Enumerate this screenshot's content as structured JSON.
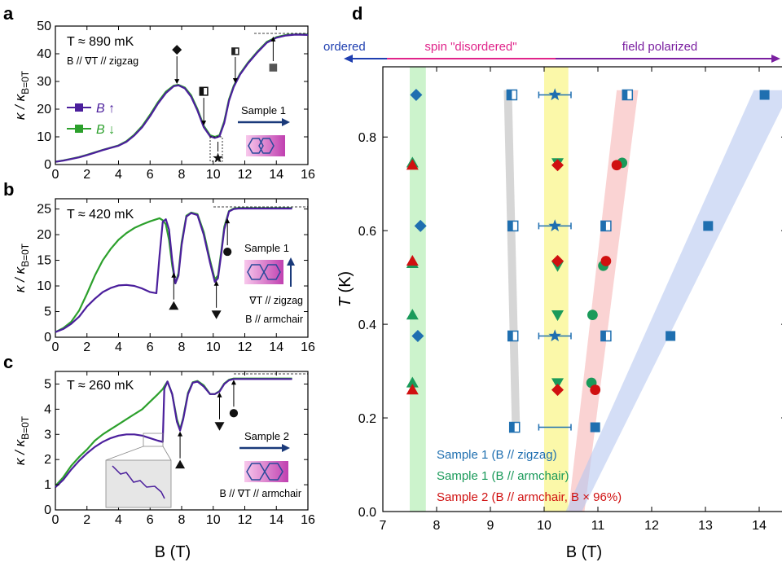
{
  "colors": {
    "purple": "#4b1f9c",
    "green": "#2ca02c",
    "blue": "#1f6fb0",
    "dkgreen": "#1a9a5a",
    "red": "#d01010",
    "navy": "#1a3a7a",
    "ordered": "#1f3fb0",
    "pink": "#e0248a",
    "violet": "#7a1fa0",
    "gray": "#555555"
  },
  "chart_data": [
    {
      "panel": "a",
      "type": "line",
      "ylabel_main": "κ / κ",
      "ylabel_sub": "B=0T",
      "xlim": [
        0,
        16
      ],
      "ylim": [
        0,
        50
      ],
      "xticks": [
        "0",
        "2",
        "4",
        "6",
        "8",
        "10",
        "12",
        "14",
        "16"
      ],
      "yticks": [
        "0",
        "10",
        "20",
        "30",
        "40",
        "50"
      ],
      "temp_label": "T ≈ 890 mK",
      "config_label": "B // ∇T // zigzag",
      "legend": [
        "B ↑",
        "B ↓"
      ],
      "sample_label": "Sample 1",
      "series": [
        {
          "name": "B ↑",
          "color_key": "purple",
          "x": [
            0,
            0.5,
            1,
            1.5,
            2,
            2.5,
            3,
            3.5,
            4,
            4.5,
            5,
            5.5,
            6,
            6.5,
            7,
            7.5,
            7.8,
            8.2,
            8.6,
            9,
            9.4,
            9.8,
            10.1,
            10.4,
            10.7,
            11,
            11.3,
            11.7,
            12.2,
            12.8,
            13.4,
            14,
            14.6,
            15.2,
            16
          ],
          "y": [
            1,
            1.4,
            2,
            2.6,
            3.4,
            4.3,
            5.2,
            6,
            6.8,
            8.2,
            10.5,
            13.5,
            17.5,
            22,
            25.8,
            28.3,
            28.6,
            27.5,
            24.5,
            19.5,
            13.5,
            10.2,
            9.6,
            10.2,
            15,
            23,
            28,
            32.5,
            36.5,
            40.5,
            44,
            45.8,
            46.6,
            46.9,
            46.8
          ]
        },
        {
          "name": "B ↓",
          "color_key": "green",
          "x": [
            0,
            0.5,
            1,
            1.5,
            2,
            2.5,
            3,
            3.5,
            4,
            4.5,
            5,
            5.5,
            6,
            6.5,
            7,
            7.5,
            7.8,
            8.2,
            8.6,
            9,
            9.4,
            9.8,
            10.1,
            10.4,
            10.7,
            11,
            11.3,
            11.7,
            12.2,
            12.8,
            13.4,
            14,
            14.6,
            15.2,
            16
          ],
          "y": [
            1,
            1.5,
            2.1,
            2.7,
            3.5,
            4.4,
            5.3,
            6.1,
            6.9,
            8.4,
            10.8,
            13.9,
            18,
            22.5,
            26.3,
            28.5,
            28.8,
            27.8,
            25,
            20,
            14,
            10.6,
            10,
            10.6,
            15.6,
            23.5,
            28.4,
            32.8,
            36.8,
            40.8,
            44.3,
            46,
            46.8,
            47,
            47
          ]
        }
      ],
      "annotations": [
        {
          "symbol": "diamond",
          "label_x": 7.7
        },
        {
          "symbol": "half-square",
          "label_x": 9.4
        },
        {
          "symbol": "star",
          "label_x": 10.3
        },
        {
          "symbol": "half-square",
          "label_x": 11.4
        },
        {
          "symbol": "square",
          "label_x": 13.8
        }
      ]
    },
    {
      "panel": "b",
      "type": "line",
      "ylabel_main": "κ / κ",
      "ylabel_sub": "B=0T",
      "xlim": [
        0,
        16
      ],
      "ylim": [
        0,
        27
      ],
      "xticks": [
        "0",
        "2",
        "4",
        "6",
        "8",
        "10",
        "12",
        "14",
        "16"
      ],
      "yticks": [
        "0",
        "5",
        "10",
        "15",
        "20",
        "25"
      ],
      "temp_label": "T ≈ 420 mK",
      "sample_label": "Sample 1",
      "config_label_1": "∇T // zigzag",
      "config_label_2": "B // armchair",
      "series": [
        {
          "name": "B ↑",
          "color_key": "purple",
          "x": [
            0,
            0.5,
            1,
            1.5,
            2,
            2.5,
            3,
            3.5,
            4,
            4.5,
            5,
            5.5,
            6,
            6.4,
            6.6,
            6.8,
            7,
            7.2,
            7.4,
            7.6,
            7.8,
            8,
            8.3,
            8.6,
            9,
            9.4,
            9.8,
            10.1,
            10.3,
            10.5,
            10.7,
            11,
            11.3,
            11.6,
            12,
            13,
            14,
            15
          ],
          "y": [
            1,
            1.6,
            2.6,
            4,
            6,
            7.5,
            8.8,
            9.6,
            10.1,
            10.2,
            10,
            9.5,
            8.8,
            8.6,
            16,
            22.5,
            23,
            21,
            15,
            10.5,
            12,
            18,
            23.5,
            24.2,
            23.8,
            20,
            14.5,
            10.8,
            11.5,
            16,
            21,
            24.5,
            25,
            25.1,
            25.1,
            25.1,
            25.1,
            25.1
          ]
        },
        {
          "name": "B ↓",
          "color_key": "green",
          "x": [
            0,
            0.5,
            1,
            1.5,
            2,
            2.5,
            3,
            3.5,
            4,
            4.5,
            5,
            5.5,
            6,
            6.4,
            6.6,
            6.8,
            7,
            7.2,
            7.4,
            7.6,
            7.8,
            8,
            8.3,
            8.6,
            9,
            9.4,
            9.8,
            10.1,
            10.3,
            10.5,
            10.7,
            11,
            11.3,
            11.6,
            12,
            13,
            14,
            15
          ],
          "y": [
            1,
            1.8,
            3,
            5.2,
            8.5,
            12,
            15,
            17.2,
            19,
            20.3,
            21.3,
            22,
            22.6,
            23,
            23.2,
            22.8,
            22,
            19,
            14,
            10.5,
            12.5,
            18.5,
            23.7,
            24.3,
            24,
            20.5,
            15,
            11.3,
            12,
            16.5,
            21.5,
            24.6,
            25.1,
            25.2,
            25.2,
            25.2,
            25.2,
            25.2
          ]
        }
      ],
      "annotations": [
        {
          "symbol": "triangle-up",
          "label_x": 7.5
        },
        {
          "symbol": "triangle-down",
          "label_x": 10.2
        },
        {
          "symbol": "circle",
          "label_x": 10.9
        }
      ]
    },
    {
      "panel": "c",
      "type": "line",
      "ylabel_main": "κ / κ",
      "ylabel_sub": "B=0T",
      "xlim": [
        0,
        16
      ],
      "ylim": [
        0,
        5.5
      ],
      "xticks": [
        "0",
        "2",
        "4",
        "6",
        "8",
        "10",
        "12",
        "14",
        "16"
      ],
      "yticks": [
        "0",
        "1",
        "2",
        "3",
        "4",
        "5"
      ],
      "temp_label": "T ≈ 260 mK",
      "sample_label": "Sample 2",
      "config_label": "B // ∇T // armchair",
      "series": [
        {
          "name": "B ↑",
          "color_key": "purple",
          "x": [
            0,
            0.5,
            1,
            1.5,
            2,
            2.5,
            3,
            3.5,
            4,
            4.5,
            5,
            5.5,
            6,
            6.5,
            6.8,
            6.9,
            7.1,
            7.4,
            7.7,
            7.9,
            8.1,
            8.4,
            8.7,
            9,
            9.4,
            9.8,
            10.1,
            10.4,
            10.7,
            11,
            11.3,
            12,
            13,
            14,
            15
          ],
          "y": [
            0.9,
            1.2,
            1.6,
            1.95,
            2.25,
            2.5,
            2.7,
            2.85,
            2.95,
            3,
            3,
            2.95,
            2.85,
            2.75,
            2.7,
            4.8,
            5.1,
            4.6,
            3.5,
            3.15,
            3.6,
            4.6,
            5.05,
            5.1,
            4.9,
            4.6,
            4.6,
            4.7,
            5,
            5.15,
            5.2,
            5.2,
            5.2,
            5.2,
            5.2
          ]
        },
        {
          "name": "B ↓",
          "color_key": "green",
          "x": [
            0,
            0.5,
            1,
            1.5,
            2,
            2.5,
            3,
            3.5,
            4,
            4.5,
            5,
            5.5,
            6,
            6.5,
            6.8,
            6.9,
            7.1,
            7.4,
            7.7,
            7.9,
            8.1,
            8.4,
            8.7,
            9,
            9.4,
            9.8,
            10.1,
            10.4,
            10.7,
            11,
            11.3,
            12,
            13,
            14,
            15
          ],
          "y": [
            0.95,
            1.3,
            1.75,
            2.1,
            2.4,
            2.75,
            3,
            3.2,
            3.4,
            3.6,
            3.8,
            4,
            4.3,
            4.6,
            4.8,
            4.9,
            5.1,
            4.6,
            3.6,
            3.2,
            3.65,
            4.65,
            5.07,
            5.12,
            4.95,
            4.6,
            4.6,
            4.72,
            5.02,
            5.17,
            5.22,
            5.22,
            5.22,
            5.22,
            5.22
          ]
        }
      ],
      "annotations": [
        {
          "symbol": "triangle-up",
          "label_x": 7.9
        },
        {
          "symbol": "triangle-down",
          "label_x": 10.4
        },
        {
          "symbol": "circle",
          "label_x": 11.3
        }
      ]
    },
    {
      "panel": "d",
      "type": "scatter",
      "xlabel": "B (T)",
      "ylabel": "T (K)",
      "xlim": [
        7,
        14.5
      ],
      "ylim": [
        0,
        0.95
      ],
      "xticks": [
        "7",
        "8",
        "9",
        "10",
        "11",
        "12",
        "13",
        "14"
      ],
      "yticks": [
        "0.0",
        "0.2",
        "0.4",
        "0.6",
        "0.8"
      ],
      "phase_labels": [
        "ordered",
        "spin \"disordered\"",
        "field polarized"
      ],
      "legend": [
        "Sample 1 (B // zigzag)",
        "Sample 1 (B // armchair)",
        "Sample 2 (B // armchair, B × 96%)"
      ],
      "series": [
        {
          "name": "Sample 1 (B // zigzag)",
          "color_key": "blue",
          "marker": "diamond",
          "x": [
            7.62,
            7.7,
            7.65
          ],
          "y": [
            0.89,
            0.61,
            0.375
          ]
        },
        {
          "name": "Sample 1 (B // zigzag)",
          "color_key": "blue",
          "marker": "half-square",
          "x": [
            9.4,
            9.42,
            9.42,
            9.45,
            11.55,
            11.15,
            11.15
          ],
          "y": [
            0.89,
            0.61,
            0.375,
            0.18,
            0.89,
            0.61,
            0.375
          ]
        },
        {
          "name": "Sample 1 (B // zigzag)",
          "color_key": "blue",
          "marker": "star",
          "x": [
            10.2,
            10.2,
            10.2
          ],
          "y": [
            0.89,
            0.61,
            0.375
          ]
        },
        {
          "name": "Sample 1 (B // zigzag)",
          "color_key": "blue",
          "marker": "square",
          "x": [
            14.1,
            13.05,
            12.35,
            10.95
          ],
          "y": [
            0.89,
            0.61,
            0.375,
            0.18
          ]
        },
        {
          "name": "Sample 1 (B // armchair)",
          "color_key": "dkgreen",
          "marker": "triangle-up",
          "x": [
            7.55,
            7.55,
            7.55,
            7.55
          ],
          "y": [
            0.745,
            0.53,
            0.42,
            0.275
          ]
        },
        {
          "name": "Sample 1 (B // armchair)",
          "color_key": "dkgreen",
          "marker": "triangle-down",
          "x": [
            10.25,
            10.25,
            10.25,
            10.25
          ],
          "y": [
            0.745,
            0.525,
            0.42,
            0.275
          ]
        },
        {
          "name": "Sample 1 (B // armchair)",
          "color_key": "dkgreen",
          "marker": "circle",
          "x": [
            11.45,
            11.1,
            10.9,
            10.88
          ],
          "y": [
            0.745,
            0.525,
            0.42,
            0.275
          ]
        },
        {
          "name": "Sample 2 (B // armchair, B × 96%)",
          "color_key": "red",
          "marker": "triangle-up",
          "x": [
            7.55,
            7.55,
            7.55
          ],
          "y": [
            0.74,
            0.535,
            0.26
          ]
        },
        {
          "name": "Sample 2 (B // armchair, B × 96%)",
          "color_key": "red",
          "marker": "diamond",
          "x": [
            10.25,
            10.25,
            10.25
          ],
          "y": [
            0.74,
            0.535,
            0.26
          ]
        },
        {
          "name": "Sample 2 (B // armchair, B × 96%)",
          "color_key": "red",
          "marker": "circle",
          "x": [
            11.35,
            11.15,
            10.95
          ],
          "y": [
            0.74,
            0.535,
            0.26
          ]
        }
      ],
      "xerr": {
        "x": [
          10.2,
          10.2,
          10.2,
          10.2
        ],
        "y": [
          0.89,
          0.61,
          0.375,
          0.18
        ],
        "half": 0.3
      }
    }
  ]
}
